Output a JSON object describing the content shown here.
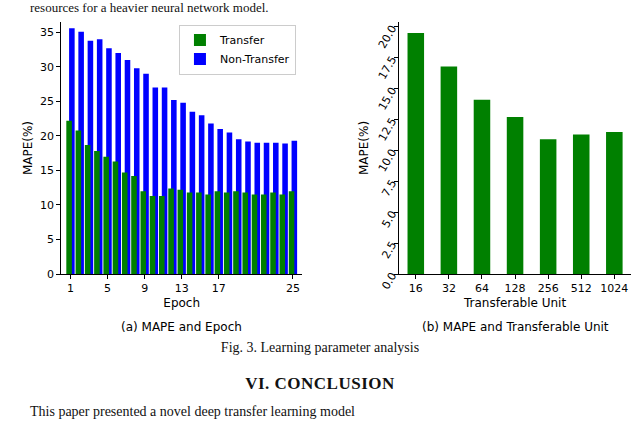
{
  "top_text": "resources for a heavier neural network model.",
  "chart_data": [
    {
      "type": "bar",
      "title": "(a) MAPE and Epoch",
      "x_label": "Epoch",
      "y_label": "MAPE(%)",
      "x": [
        1,
        2,
        3,
        4,
        5,
        6,
        7,
        8,
        9,
        10,
        11,
        12,
        13,
        14,
        15,
        16,
        17,
        18,
        19,
        20,
        21,
        22,
        23,
        24,
        25
      ],
      "series": [
        {
          "name": "Transfer",
          "color": "#008000",
          "values": [
            22.2,
            20.8,
            18.7,
            17.8,
            17.0,
            16.3,
            14.7,
            14.2,
            12.0,
            11.3,
            11.3,
            12.4,
            12.2,
            11.8,
            11.8,
            11.5,
            12.0,
            11.8,
            12.0,
            11.8,
            11.5,
            11.5,
            11.8,
            11.5,
            12.0
          ]
        },
        {
          "name": "Non-Transfer",
          "color": "#0000ff",
          "values": [
            35.6,
            35.1,
            33.8,
            34.0,
            32.7,
            32.0,
            31.0,
            29.8,
            29.0,
            27.0,
            27.0,
            25.2,
            24.8,
            23.5,
            23.0,
            21.8,
            21.0,
            20.5,
            19.5,
            19.2,
            19.0,
            19.0,
            19.0,
            18.9,
            19.3
          ]
        }
      ],
      "xlim": [
        0,
        26
      ],
      "xticks": [
        1,
        5,
        9,
        13,
        17,
        25
      ],
      "ylim": [
        0,
        36.5
      ],
      "yticks": [
        0,
        5,
        10,
        15,
        20,
        25,
        30,
        35
      ],
      "grid": false,
      "legend": "upper right"
    },
    {
      "type": "bar",
      "title": "(b) MAPE and Transferable Unit",
      "x_label": "Transferable Unit",
      "y_label": "MAPE(%)",
      "categories": [
        "16",
        "32",
        "64",
        "128",
        "256",
        "512",
        "1024"
      ],
      "values": [
        19.5,
        16.8,
        14.1,
        12.7,
        10.9,
        11.3,
        11.5
      ],
      "color": "#008000",
      "ylim": [
        0,
        20.4
      ],
      "yticks": [
        {
          "value": 0,
          "label": "0.0"
        },
        2.5,
        {
          "value": 5,
          "label": "5.0"
        },
        7.5,
        {
          "value": 10,
          "label": "10.0"
        },
        12.5,
        {
          "value": 15,
          "label": "15.0"
        },
        17.5,
        {
          "value": 20,
          "label": "20.0"
        }
      ],
      "grid": false
    }
  ],
  "caption": "Fig. 3.  Learning parameter analysis",
  "heading": "VI. CONCLUSION",
  "bottom_text": "This paper presented a novel deep transfer learning model"
}
